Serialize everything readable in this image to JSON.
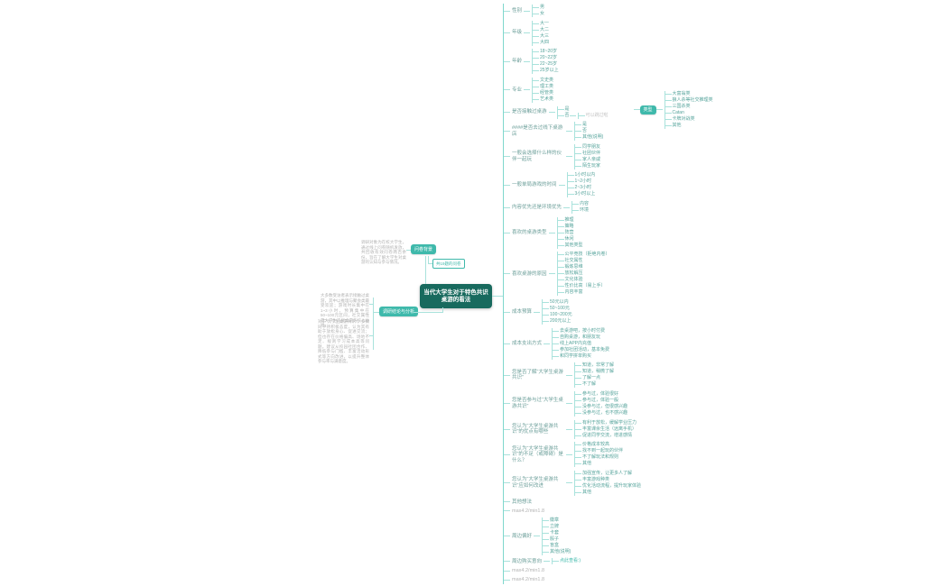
{
  "meta": {
    "app": "mindmap-canvas",
    "colors": {
      "central_bg": "#186a5e",
      "node_teal": "#3fb9ab",
      "line": "#a9e2dc",
      "label_text": "#6b9e99",
      "gray_text": "#b3b3b3"
    }
  },
  "central": {
    "title": "当代大学生对于特色共识桌游的看法"
  },
  "left": {
    "background_pill": "问卷背景",
    "background_para": "调研对象为在校大学生，通过线上问卷随机发放，共回收有效问卷两百余份，旨在了解大学生对桌游的认知与参与情况。",
    "question_box": "共19题的问卷",
    "conclusion_pill": "调研结论与分析",
    "conclusion_para1": "大多数受访者表示接触过桌游，其中以推理与聚会类最受欢迎；游戏时长集中在1~3小时，预算集中在50~100元区间，社交属性是大学生选择桌游的核心动力。",
    "conclusion_para2": "对于“大学生桌游共识”，多数同学持积极态度，认为其有助于放松身心、促进交流；但也存在价格偏高、场地不足、规则学习成本高等问题。建议从校园社团合作、降低参与门槛、丰富活动形式等方向改进，以提升整体参与率与满意度。"
  },
  "branches": [
    {
      "t": "性别",
      "children": [
        {
          "t": "男"
        },
        {
          "t": "女"
        }
      ]
    },
    {
      "t": "年级",
      "children": [
        {
          "t": "大一"
        },
        {
          "t": "大二"
        },
        {
          "t": "大三"
        },
        {
          "t": "大四"
        }
      ]
    },
    {
      "t": "年龄",
      "children": [
        {
          "t": "18~20岁"
        },
        {
          "t": "20~22岁"
        },
        {
          "t": "22~25岁"
        },
        {
          "t": "25岁以上"
        }
      ]
    },
    {
      "t": "专业",
      "children": [
        {
          "t": "文史类"
        },
        {
          "t": "理工类"
        },
        {
          "t": "经管类"
        },
        {
          "t": "艺术类"
        }
      ]
    },
    {
      "t": "是否接触过桌游",
      "children": [
        {
          "t": "是",
          "float": {
            "t": "类型",
            "style": "pill",
            "children": [
              {
                "t": "大富翁类"
              },
              {
                "t": "狼人杀等社交推理类"
              },
              {
                "t": "三国杀类"
              },
              {
                "t": "Catan"
              },
              {
                "t": "卡牌对战类"
              },
              {
                "t": "其他"
              }
            ]
          }
        },
        {
          "t": "否",
          "children": [
            {
              "t": "可以跳过啦",
              "style": "note"
            }
          ]
        }
      ]
    },
    {
      "t": "####是否去过线下桌游店",
      "children": [
        {
          "t": "是"
        },
        {
          "t": "否"
        },
        {
          "t": "其他(说明)"
        }
      ]
    },
    {
      "t": "一般会选择什么样的伙伴一起玩",
      "children": [
        {
          "t": "同学朋友"
        },
        {
          "t": "社团伙伴"
        },
        {
          "t": "家人亲戚"
        },
        {
          "t": "陌生玩家"
        }
      ]
    },
    {
      "t": "一般单局游戏的时间",
      "children": [
        {
          "t": "1小时以内"
        },
        {
          "t": "1~2小时"
        },
        {
          "t": "2~3小时"
        },
        {
          "t": "3小时以上"
        }
      ]
    },
    {
      "t": "内容优先还是环境优先",
      "children": [
        {
          "t": "内容"
        },
        {
          "t": "环境"
        }
      ]
    },
    {
      "t": "喜欢的桌游类型",
      "children": [
        {
          "t": "推理"
        },
        {
          "t": "策略"
        },
        {
          "t": "阵营"
        },
        {
          "t": "休闲"
        },
        {
          "t": "其他类型"
        }
      ]
    },
    {
      "t": "喜欢桌游的原因",
      "children": [
        {
          "t": "公平竞技（拒绝内卷）"
        },
        {
          "t": "社交属性"
        },
        {
          "t": "锻炼思维"
        },
        {
          "t": "放松解压"
        },
        {
          "t": "文化体验"
        },
        {
          "t": "性价比高（易上手）"
        },
        {
          "t": "内容丰富"
        }
      ]
    },
    {
      "t": "成本预算",
      "children": [
        {
          "t": "50元以内"
        },
        {
          "t": "50~100元"
        },
        {
          "t": "100~200元"
        },
        {
          "t": "200元以上"
        }
      ]
    },
    {
      "t": "成本支出方式",
      "children": [
        {
          "t": "去桌游吧，按小时付费"
        },
        {
          "t": "自购桌游，和朋友玩"
        },
        {
          "t": "线上APP内充值"
        },
        {
          "t": "参加社团活动，基本免费"
        },
        {
          "t": "和同学拼单购买"
        }
      ]
    },
    {
      "t": "您是否了解“大学生桌游共识”",
      "children": [
        {
          "t": "知道，非常了解"
        },
        {
          "t": "知道，稍微了解"
        },
        {
          "t": "了解一点"
        },
        {
          "t": "不了解"
        }
      ]
    },
    {
      "t": "您是否参与过“大学生桌游共识”",
      "children": [
        {
          "t": "参与过，体验很好"
        },
        {
          "t": "参与过，体验一般"
        },
        {
          "t": "没参与过，但很感兴趣"
        },
        {
          "t": "没参与过，也不感兴趣"
        }
      ]
    },
    {
      "t": "您认为“大学生桌游共识”的优点有哪些",
      "children": [
        {
          "t": "有利于放松，缓解学业压力"
        },
        {
          "t": "丰富课余生活（远离手机）"
        },
        {
          "t": "促进同学交流，增进感情"
        }
      ]
    },
    {
      "t": "您认为“大学生桌游共识”的不足（或障碍）是什么？",
      "children": [
        {
          "t": "价格成本较高"
        },
        {
          "t": "找不到一起玩的伙伴"
        },
        {
          "t": "不了解玩法和规则"
        },
        {
          "t": "其他"
        }
      ]
    },
    {
      "t": "您认为“大学生桌游共识”应如何改进",
      "children": [
        {
          "t": "加强宣传，让更多人了解"
        },
        {
          "t": "丰富游戏种类"
        },
        {
          "t": "优化活动流程，提升玩家体验"
        },
        {
          "t": "其他"
        }
      ]
    },
    {
      "t": "其他想法"
    },
    {
      "t": "max4.2/min1.8",
      "style": "gray"
    },
    {
      "t": "周边偏好",
      "children": [
        {
          "t": "徽章"
        },
        {
          "t": "立牌"
        },
        {
          "t": "卡套"
        },
        {
          "t": "骰子"
        },
        {
          "t": "盲盒"
        },
        {
          "t": "其他(说明)"
        }
      ]
    },
    {
      "t": "周边购买意向",
      "children": [
        {
          "t": "点此查看:)",
          "style": "link"
        }
      ]
    },
    {
      "t": "max4.2/min1.8",
      "style": "gray"
    },
    {
      "t": "max4.2/min1.8",
      "style": "gray"
    }
  ]
}
